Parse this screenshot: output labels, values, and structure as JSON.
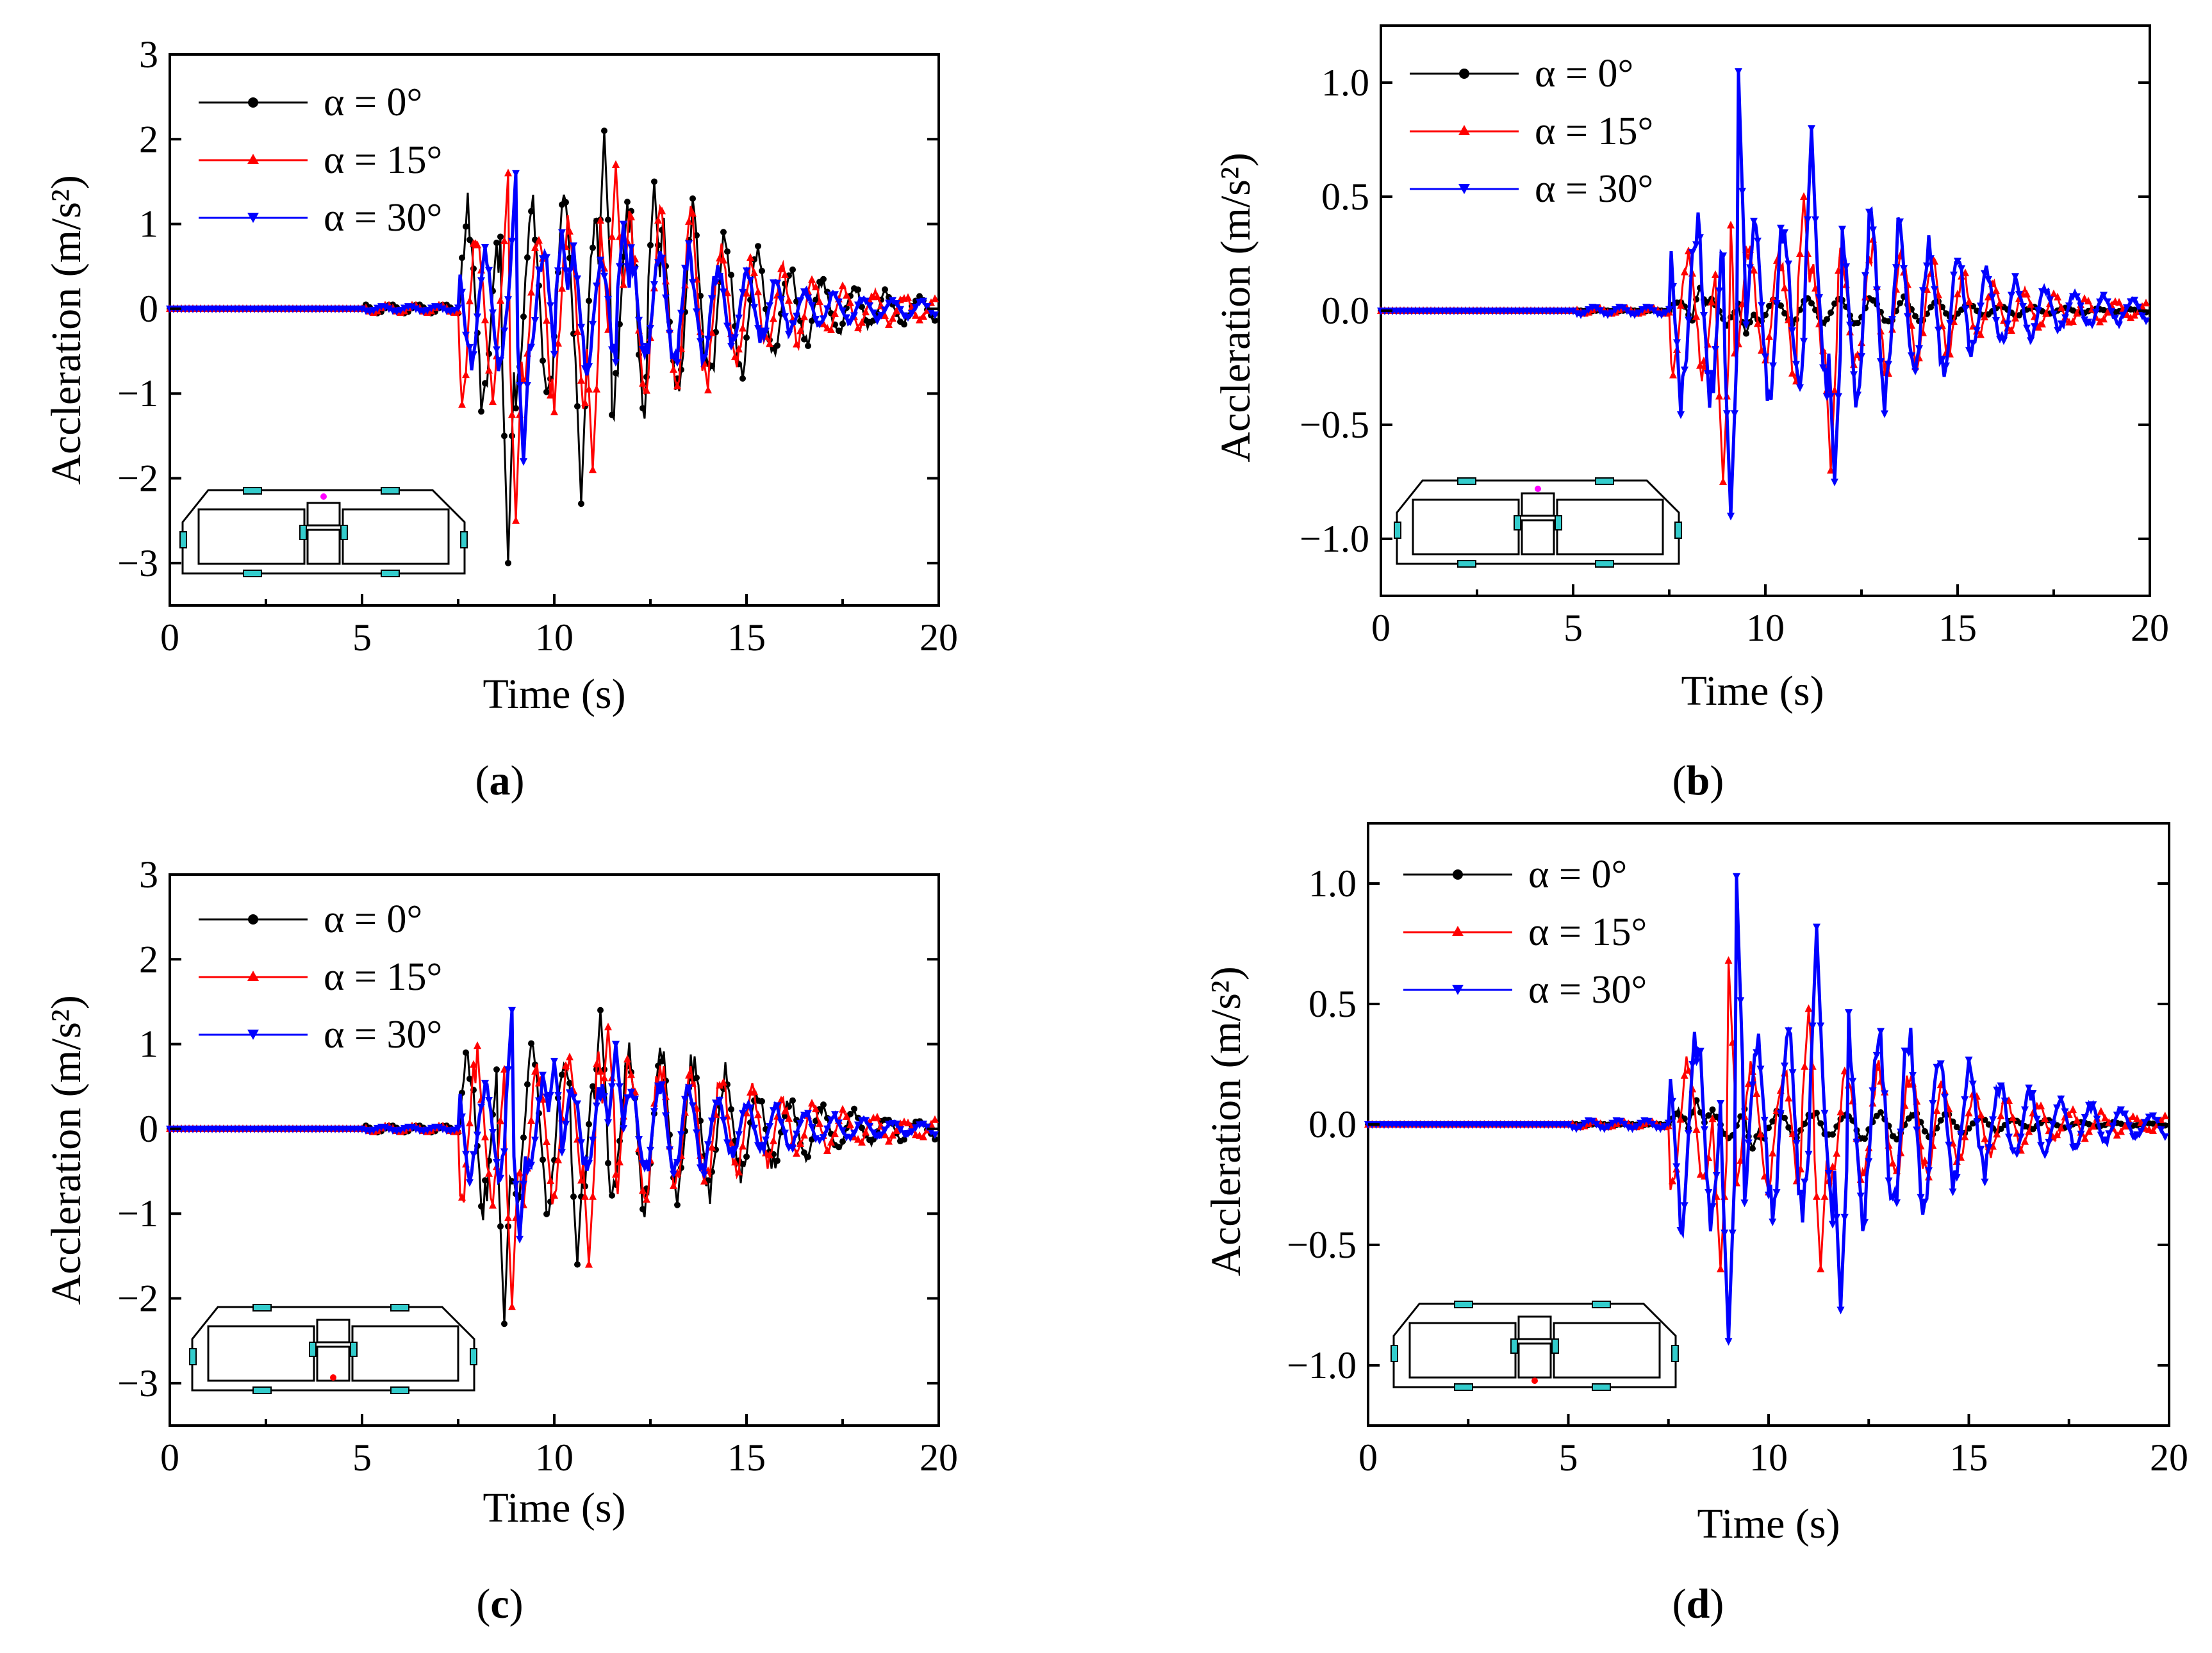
{
  "colors": {
    "s0": "#000000",
    "s15": "#ff0000",
    "s30": "#0000ff",
    "sensor": "#33cccc"
  },
  "chart_data": [
    {
      "id": "a",
      "caption": "a",
      "type": "line",
      "xlabel": "Time (s)",
      "ylabel": "Accleration (m/s²)",
      "xlim": [
        0,
        20
      ],
      "ylim": [
        -3.5,
        3
      ],
      "xticks": [
        "0",
        "5",
        "10",
        "15",
        "20"
      ],
      "yticks": [
        "3",
        "2",
        "1",
        "0",
        "−1",
        "−2",
        "−3"
      ],
      "ytick_values": [
        3,
        2,
        1,
        0,
        -1,
        -2,
        -3
      ],
      "legend": [
        "α = 0°",
        "α = 15°",
        "α = 30°"
      ],
      "legend_location": "top-left",
      "inset_marker": "top-center",
      "series": [
        {
          "name": "α = 0°",
          "key": "s0",
          "amp": 2.6,
          "peaks": [
            [
              8.7,
              1.7
            ],
            [
              8.8,
              -3.0
            ],
            [
              11.3,
              2.1
            ],
            [
              10.7,
              -2.3
            ],
            [
              12.6,
              1.5
            ]
          ]
        },
        {
          "name": "α = 15°",
          "key": "s15",
          "amp": 2.3,
          "peaks": [
            [
              8.8,
              1.6
            ],
            [
              9.0,
              -2.5
            ],
            [
              11.6,
              1.7
            ],
            [
              11.0,
              -1.9
            ]
          ]
        },
        {
          "name": "α = 30°",
          "key": "s30",
          "amp": 1.5,
          "peaks": [
            [
              9.0,
              1.6
            ],
            [
              9.2,
              -1.8
            ],
            [
              10.2,
              0.9
            ],
            [
              11.8,
              1.0
            ]
          ]
        }
      ]
    },
    {
      "id": "b",
      "caption": "b",
      "type": "line",
      "xlabel": "Time (s)",
      "ylabel": "Accleration (m/s²)",
      "xlim": [
        0,
        20
      ],
      "ylim": [
        -1.25,
        1.25
      ],
      "xticks": [
        "0",
        "5",
        "10",
        "15",
        "20"
      ],
      "yticks": [
        "1.0",
        "0.5",
        "0.0",
        "−0.5",
        "−1.0"
      ],
      "ytick_values": [
        1.0,
        0.5,
        0.0,
        -0.5,
        -1.0
      ],
      "legend": [
        "α = 0°",
        "α = 15°",
        "α = 30°"
      ],
      "legend_location": "top-left",
      "inset_marker": "top-center",
      "series": [
        {
          "name": "α = 0°",
          "key": "s0",
          "amp": 0.12,
          "peaks": [
            [
              8.3,
              0.1
            ],
            [
              9.5,
              -0.1
            ]
          ]
        },
        {
          "name": "α = 15°",
          "key": "s15",
          "amp": 0.6,
          "peaks": [
            [
              9.0,
              0.75
            ],
            [
              8.9,
              -0.75
            ],
            [
              11.0,
              0.5
            ],
            [
              11.7,
              -0.7
            ]
          ]
        },
        {
          "name": "α = 30°",
          "key": "s30",
          "amp": 0.85,
          "peaks": [
            [
              9.3,
              1.05
            ],
            [
              9.1,
              -0.9
            ],
            [
              11.2,
              0.8
            ],
            [
              11.8,
              -0.75
            ]
          ]
        }
      ]
    },
    {
      "id": "c",
      "caption": "c",
      "type": "line",
      "xlabel": "Time (s)",
      "ylabel": "Accleration (m/s²)",
      "xlim": [
        0,
        20
      ],
      "ylim": [
        -3.5,
        3
      ],
      "xticks": [
        "0",
        "5",
        "10",
        "15",
        "20"
      ],
      "yticks": [
        "3",
        "2",
        "1",
        "0",
        "−1",
        "−2",
        "−3"
      ],
      "ytick_values": [
        3,
        2,
        1,
        0,
        -1,
        -2,
        -3
      ],
      "legend": [
        "α = 0°",
        "α = 15°",
        "α = 30°"
      ],
      "legend_location": "top-left",
      "inset_marker": "bottom-center",
      "series": [
        {
          "name": "α = 0°",
          "key": "s0",
          "amp": 2.0,
          "peaks": [
            [
              8.6,
              1.4
            ],
            [
              8.7,
              -2.3
            ],
            [
              11.2,
              1.4
            ],
            [
              10.6,
              -1.6
            ]
          ]
        },
        {
          "name": "α = 15°",
          "key": "s15",
          "amp": 1.8,
          "peaks": [
            [
              8.8,
              1.4
            ],
            [
              8.9,
              -2.1
            ],
            [
              11.4,
              1.2
            ],
            [
              10.9,
              -1.6
            ]
          ]
        },
        {
          "name": "α = 30°",
          "key": "s30",
          "amp": 1.2,
          "peaks": [
            [
              8.9,
              1.4
            ],
            [
              9.1,
              -1.3
            ],
            [
              10.0,
              0.8
            ],
            [
              11.6,
              1.0
            ]
          ]
        }
      ]
    },
    {
      "id": "d",
      "caption": "d",
      "type": "line",
      "xlabel": "Time (s)",
      "ylabel": "Accleration (m/s²)",
      "xlim": [
        0,
        20
      ],
      "ylim": [
        -1.25,
        1.25
      ],
      "xticks": [
        "0",
        "5",
        "10",
        "15",
        "20"
      ],
      "yticks": [
        "1.0",
        "0.5",
        "0.0",
        "−0.5",
        "−1.0"
      ],
      "ytick_values": [
        1.0,
        0.5,
        0.0,
        -0.5,
        -1.0
      ],
      "legend": [
        "α = 0°",
        "α = 15°",
        "α = 30°"
      ],
      "legend_location": "top-left",
      "inset_marker": "bottom-center",
      "series": [
        {
          "name": "α = 0°",
          "key": "s0",
          "amp": 0.12,
          "peaks": [
            [
              8.2,
              0.1
            ],
            [
              9.6,
              -0.1
            ]
          ]
        },
        {
          "name": "α = 15°",
          "key": "s15",
          "amp": 0.55,
          "peaks": [
            [
              9.0,
              0.68
            ],
            [
              8.8,
              -0.6
            ],
            [
              11.0,
              0.48
            ],
            [
              11.3,
              -0.6
            ]
          ]
        },
        {
          "name": "α = 30°",
          "key": "s30",
          "amp": 0.85,
          "peaks": [
            [
              9.2,
              1.03
            ],
            [
              9.0,
              -0.9
            ],
            [
              11.2,
              0.82
            ],
            [
              11.8,
              -0.77
            ]
          ]
        }
      ]
    }
  ]
}
